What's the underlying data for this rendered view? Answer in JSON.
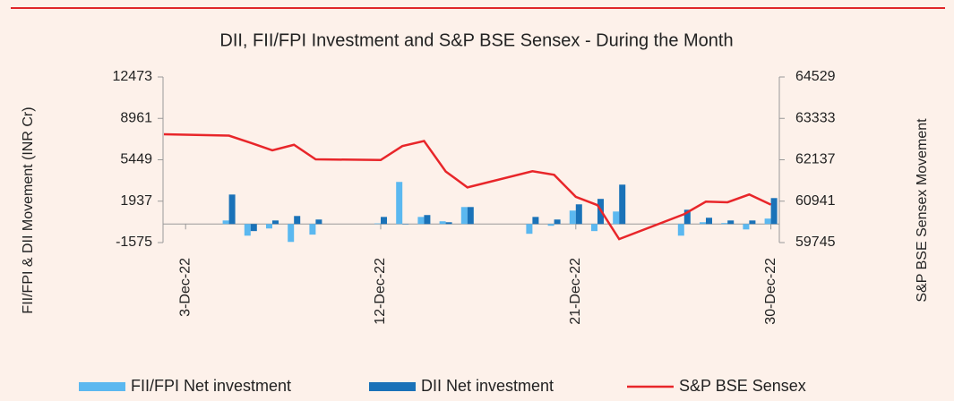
{
  "chart_data": {
    "type": "bar_line",
    "title": "DII, FII/FPI Investment and S&P BSE Sensex - During the Month",
    "y_label": "FII/FPI & DII Movement (INR Cr)",
    "y2_label": "S&P BSE Sensex Movement",
    "categories": [
      null,
      "3-Dec-22",
      null,
      null,
      null,
      null,
      null,
      null,
      null,
      null,
      "12-Dec-22",
      null,
      null,
      null,
      null,
      null,
      null,
      null,
      null,
      "21-Dec-22",
      null,
      null,
      null,
      null,
      null,
      null,
      null,
      null,
      "30-Dec-22"
    ],
    "series": [
      {
        "name": "FII/FPI Net investment",
        "type": "bar",
        "color": "#5bb8f0",
        "values": [
          null,
          null,
          null,
          300,
          -990,
          -380,
          -1520,
          -900,
          null,
          null,
          50,
          3570,
          600,
          230,
          1440,
          null,
          null,
          -830,
          -150,
          1140,
          -600,
          1060,
          null,
          null,
          -990,
          150,
          80,
          -460,
          460
        ]
      },
      {
        "name": "DII Net investment",
        "type": "bar",
        "color": "#1a72b8",
        "values": [
          null,
          null,
          null,
          2500,
          -600,
          300,
          680,
          380,
          null,
          null,
          600,
          20,
          760,
          150,
          1440,
          null,
          null,
          600,
          380,
          1670,
          2130,
          3340,
          null,
          null,
          1210,
          530,
          300,
          300,
          2200
        ]
      },
      {
        "name": "S&P BSE Sensex",
        "type": "line",
        "axis": "y2",
        "color": "#e8262a",
        "values": [
          62874,
          null,
          null,
          62834,
          62626,
          62410,
          62570,
          62150,
          null,
          null,
          62130,
          62533,
          62678,
          61799,
          61338,
          null,
          null,
          61806,
          61702,
          61067,
          60826,
          59845,
          null,
          null,
          60566,
          60927,
          60910,
          61134,
          60841
        ]
      }
    ],
    "ylim": [
      -1575,
      12473
    ],
    "yticks": [
      -1575,
      1937,
      5449,
      8961,
      12473
    ],
    "y2lim": [
      59745,
      64529
    ],
    "y2ticks": [
      59745,
      60941,
      62137,
      63333,
      64529
    ],
    "legend": "bottom"
  }
}
